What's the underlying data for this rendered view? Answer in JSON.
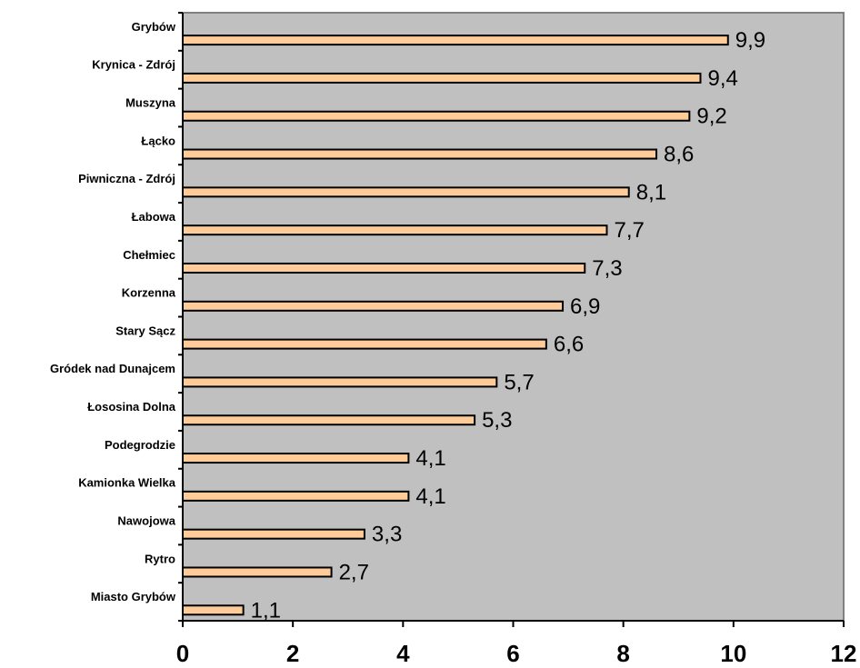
{
  "chart_data": {
    "type": "bar",
    "orientation": "horizontal",
    "categories": [
      "Grybów",
      "Krynica - Zdrój",
      "Muszyna",
      "Łącko",
      "Piwniczna - Zdrój",
      "Łabowa",
      "Chełmiec",
      "Korzenna",
      "Stary Sącz",
      "Gródek nad Dunajcem",
      "Łososina Dolna",
      "Podegrodzie",
      "Kamionka Wielka",
      "Nawojowa",
      "Rytro",
      "Miasto Grybów"
    ],
    "values": [
      9.9,
      9.4,
      9.2,
      8.6,
      8.1,
      7.7,
      7.3,
      6.9,
      6.6,
      5.7,
      5.3,
      4.1,
      4.1,
      3.3,
      2.7,
      1.1
    ],
    "value_labels": [
      "9,9",
      "9,4",
      "9,2",
      "8,6",
      "8,1",
      "7,7",
      "7,3",
      "6,9",
      "6,6",
      "5,7",
      "5,3",
      "4,1",
      "4,1",
      "3,3",
      "2,7",
      "1,1"
    ],
    "x_ticks": [
      0,
      2,
      4,
      6,
      8,
      10,
      12
    ],
    "xlim": [
      0,
      12
    ],
    "title": "",
    "xlabel": "",
    "ylabel": "",
    "grid": false,
    "legend": "none",
    "colors": {
      "plot_background": "#c0c0c0",
      "bar_fill": "#ffcc99",
      "bar_stroke": "#000000",
      "plot_border": "#808080",
      "axis": "#000000"
    }
  }
}
